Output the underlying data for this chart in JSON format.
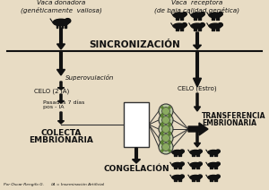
{
  "bg_color": "#e8dcc4",
  "title_left": "Vaca donadora\n(genéticamente  valiosa)",
  "title_right": "Vaca  receptora\n(de baja calidad genética)",
  "sincronizacion": "SINCRONIZACIÓN",
  "step1": "Superovulación",
  "step2": "CELO (2 IA)",
  "step3": "Pasados 7 días\npos - IA",
  "step4_line1": "COLECTA",
  "step4_line2": "EMBRIONARIA",
  "celo_estro": "CELO (Estro)",
  "trans_line1": "TRANSFERENCIA",
  "trans_line2": "EMBRIONARIA",
  "bottom_label": "CONGELACIÓN",
  "footnote": "Por Oscar Rengifo G.      IA = Inseminación Artificial",
  "arrow_color": "#111111",
  "text_color": "#111111",
  "line_color": "#111111",
  "cow_color": "#111111"
}
